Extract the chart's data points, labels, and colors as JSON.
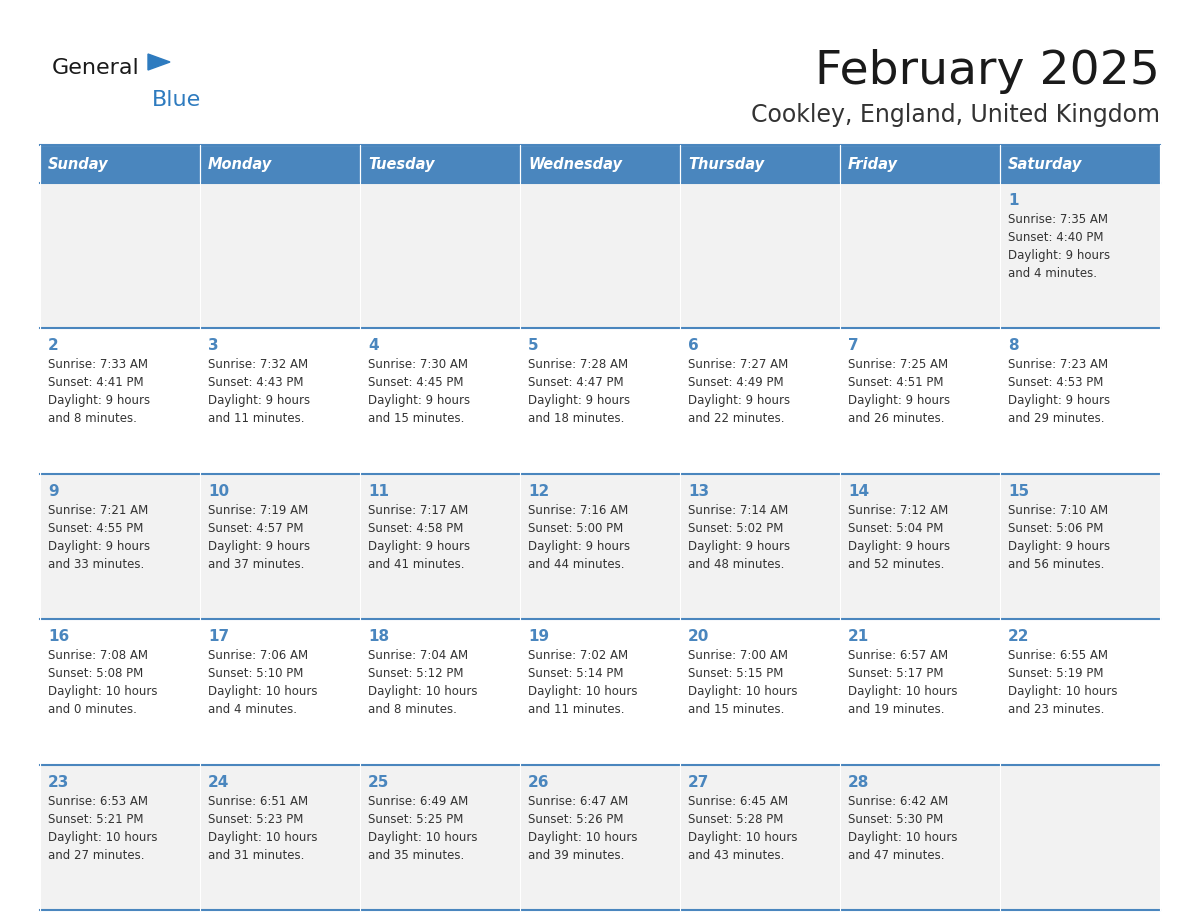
{
  "title": "February 2025",
  "subtitle": "Cookley, England, United Kingdom",
  "days_of_week": [
    "Sunday",
    "Monday",
    "Tuesday",
    "Wednesday",
    "Thursday",
    "Friday",
    "Saturday"
  ],
  "header_bg": "#4a86be",
  "header_text": "#ffffff",
  "cell_bg_odd": "#f2f2f2",
  "cell_bg_even": "#ffffff",
  "cell_text": "#333333",
  "day_num_color": "#4a86be",
  "border_color": "#4a86be",
  "title_color": "#1a1a1a",
  "subtitle_color": "#333333",
  "logo_general_color": "#1a1a1a",
  "logo_blue_color": "#2e7bbf",
  "logo_triangle_color": "#2e7bbf",
  "calendar": [
    [
      {
        "day": null
      },
      {
        "day": null
      },
      {
        "day": null
      },
      {
        "day": null
      },
      {
        "day": null
      },
      {
        "day": null
      },
      {
        "day": 1,
        "sunrise": "7:35 AM",
        "sunset": "4:40 PM",
        "daylight": "9 hours and 4 minutes."
      }
    ],
    [
      {
        "day": 2,
        "sunrise": "7:33 AM",
        "sunset": "4:41 PM",
        "daylight": "9 hours and 8 minutes."
      },
      {
        "day": 3,
        "sunrise": "7:32 AM",
        "sunset": "4:43 PM",
        "daylight": "9 hours and 11 minutes."
      },
      {
        "day": 4,
        "sunrise": "7:30 AM",
        "sunset": "4:45 PM",
        "daylight": "9 hours and 15 minutes."
      },
      {
        "day": 5,
        "sunrise": "7:28 AM",
        "sunset": "4:47 PM",
        "daylight": "9 hours and 18 minutes."
      },
      {
        "day": 6,
        "sunrise": "7:27 AM",
        "sunset": "4:49 PM",
        "daylight": "9 hours and 22 minutes."
      },
      {
        "day": 7,
        "sunrise": "7:25 AM",
        "sunset": "4:51 PM",
        "daylight": "9 hours and 26 minutes."
      },
      {
        "day": 8,
        "sunrise": "7:23 AM",
        "sunset": "4:53 PM",
        "daylight": "9 hours and 29 minutes."
      }
    ],
    [
      {
        "day": 9,
        "sunrise": "7:21 AM",
        "sunset": "4:55 PM",
        "daylight": "9 hours and 33 minutes."
      },
      {
        "day": 10,
        "sunrise": "7:19 AM",
        "sunset": "4:57 PM",
        "daylight": "9 hours and 37 minutes."
      },
      {
        "day": 11,
        "sunrise": "7:17 AM",
        "sunset": "4:58 PM",
        "daylight": "9 hours and 41 minutes."
      },
      {
        "day": 12,
        "sunrise": "7:16 AM",
        "sunset": "5:00 PM",
        "daylight": "9 hours and 44 minutes."
      },
      {
        "day": 13,
        "sunrise": "7:14 AM",
        "sunset": "5:02 PM",
        "daylight": "9 hours and 48 minutes."
      },
      {
        "day": 14,
        "sunrise": "7:12 AM",
        "sunset": "5:04 PM",
        "daylight": "9 hours and 52 minutes."
      },
      {
        "day": 15,
        "sunrise": "7:10 AM",
        "sunset": "5:06 PM",
        "daylight": "9 hours and 56 minutes."
      }
    ],
    [
      {
        "day": 16,
        "sunrise": "7:08 AM",
        "sunset": "5:08 PM",
        "daylight": "10 hours and 0 minutes."
      },
      {
        "day": 17,
        "sunrise": "7:06 AM",
        "sunset": "5:10 PM",
        "daylight": "10 hours and 4 minutes."
      },
      {
        "day": 18,
        "sunrise": "7:04 AM",
        "sunset": "5:12 PM",
        "daylight": "10 hours and 8 minutes."
      },
      {
        "day": 19,
        "sunrise": "7:02 AM",
        "sunset": "5:14 PM",
        "daylight": "10 hours and 11 minutes."
      },
      {
        "day": 20,
        "sunrise": "7:00 AM",
        "sunset": "5:15 PM",
        "daylight": "10 hours and 15 minutes."
      },
      {
        "day": 21,
        "sunrise": "6:57 AM",
        "sunset": "5:17 PM",
        "daylight": "10 hours and 19 minutes."
      },
      {
        "day": 22,
        "sunrise": "6:55 AM",
        "sunset": "5:19 PM",
        "daylight": "10 hours and 23 minutes."
      }
    ],
    [
      {
        "day": 23,
        "sunrise": "6:53 AM",
        "sunset": "5:21 PM",
        "daylight": "10 hours and 27 minutes."
      },
      {
        "day": 24,
        "sunrise": "6:51 AM",
        "sunset": "5:23 PM",
        "daylight": "10 hours and 31 minutes."
      },
      {
        "day": 25,
        "sunrise": "6:49 AM",
        "sunset": "5:25 PM",
        "daylight": "10 hours and 35 minutes."
      },
      {
        "day": 26,
        "sunrise": "6:47 AM",
        "sunset": "5:26 PM",
        "daylight": "10 hours and 39 minutes."
      },
      {
        "day": 27,
        "sunrise": "6:45 AM",
        "sunset": "5:28 PM",
        "daylight": "10 hours and 43 minutes."
      },
      {
        "day": 28,
        "sunrise": "6:42 AM",
        "sunset": "5:30 PM",
        "daylight": "10 hours and 47 minutes."
      },
      {
        "day": null
      }
    ]
  ]
}
